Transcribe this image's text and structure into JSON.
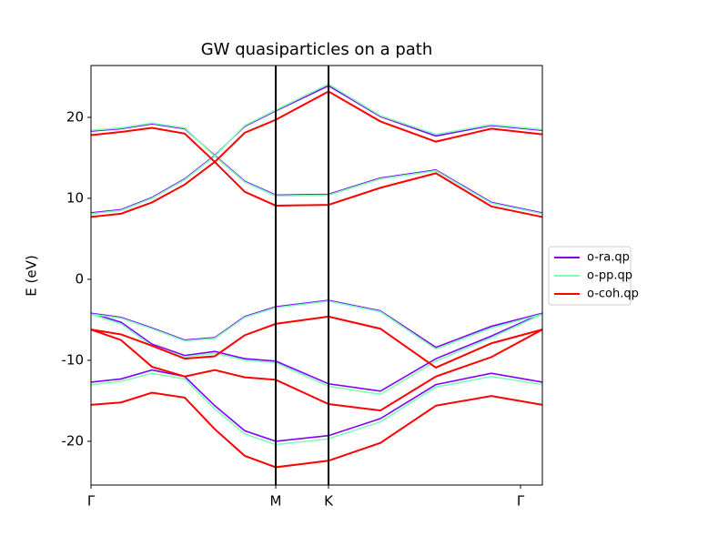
{
  "chart_data": {
    "type": "line",
    "title": "GW quasiparticles on a path",
    "y_label": "E (eV)",
    "x": [
      0,
      0.33,
      0.67,
      1.03,
      1.36,
      1.69,
      2.03,
      2.61,
      3.18,
      3.79,
      4.4,
      4.96
    ],
    "xlim": [
      0,
      4.96
    ],
    "xticks": [
      {
        "value": 0,
        "label": "Γ"
      },
      {
        "value": 2.03,
        "label": "M"
      },
      {
        "value": 2.61,
        "label": "K"
      },
      {
        "value": 4.72,
        "label": "Γ"
      }
    ],
    "vlines": true,
    "ylim": [
      -25.4,
      26.4
    ],
    "yticks": [
      -20,
      -10,
      0,
      10,
      20
    ],
    "legend": "right",
    "series": [
      {
        "name": "o-ra.qp",
        "color": "#7f00ff",
        "values": [
          [
            18.3,
            18.6,
            19.2,
            18.6,
            15.3,
            18.9,
            20.8,
            23.9,
            20.1,
            17.7,
            19.0,
            18.4
          ],
          [
            8.2,
            8.6,
            10.1,
            12.4,
            15.3,
            12.1,
            10.4,
            10.5,
            12.5,
            13.5,
            9.5,
            8.2
          ],
          [
            -4.2,
            -4.7,
            -6.0,
            -7.5,
            -7.2,
            -4.6,
            -3.4,
            -2.6,
            -3.9,
            -8.4,
            -5.8,
            -4.2
          ],
          [
            -4.2,
            -5.3,
            -8.0,
            -9.4,
            -8.9,
            -9.8,
            -10.1,
            -12.9,
            -13.8,
            -9.8,
            -7.0,
            -4.2
          ],
          [
            -12.7,
            -12.3,
            -11.2,
            -12.0,
            -15.6,
            -18.7,
            -20.0,
            -19.3,
            -17.2,
            -13.0,
            -11.6,
            -12.7
          ]
        ]
      },
      {
        "name": "o-pp.qp",
        "color": "#80ffb4",
        "values": [
          [
            18.4,
            18.7,
            19.3,
            18.7,
            15.2,
            19.0,
            20.9,
            24.1,
            20.2,
            17.9,
            19.1,
            18.5
          ],
          [
            8.1,
            8.5,
            10.0,
            12.3,
            15.2,
            12.0,
            10.3,
            10.4,
            12.4,
            13.4,
            9.4,
            8.1
          ],
          [
            -4.3,
            -4.8,
            -6.1,
            -7.6,
            -7.3,
            -4.7,
            -3.5,
            -2.7,
            -4.0,
            -8.6,
            -6.0,
            -4.3
          ],
          [
            -4.3,
            -5.5,
            -8.2,
            -9.6,
            -9.1,
            -10.0,
            -10.3,
            -13.2,
            -14.2,
            -10.1,
            -7.2,
            -4.3
          ],
          [
            -13.0,
            -12.6,
            -11.6,
            -12.3,
            -16.0,
            -19.1,
            -20.4,
            -19.7,
            -17.6,
            -13.3,
            -12.0,
            -13.0
          ]
        ]
      },
      {
        "name": "o-coh.qp",
        "color": "#ff0000",
        "values": [
          [
            17.8,
            18.2,
            18.7,
            18.0,
            14.5,
            18.1,
            19.7,
            23.2,
            19.5,
            17.0,
            18.6,
            17.9
          ],
          [
            7.7,
            8.1,
            9.5,
            11.7,
            14.5,
            10.8,
            9.1,
            9.2,
            11.3,
            13.1,
            9.0,
            7.7
          ],
          [
            -6.2,
            -6.8,
            -8.2,
            -9.8,
            -9.5,
            -6.9,
            -5.5,
            -4.6,
            -6.1,
            -10.9,
            -7.9,
            -6.2
          ],
          [
            -6.2,
            -7.5,
            -10.8,
            -12.0,
            -11.2,
            -12.1,
            -12.4,
            -15.4,
            -16.2,
            -12.0,
            -9.6,
            -6.2
          ],
          [
            -15.5,
            -15.2,
            -14.0,
            -14.6,
            -18.5,
            -21.8,
            -23.2,
            -22.4,
            -20.2,
            -15.6,
            -14.4,
            -15.5
          ]
        ]
      }
    ]
  }
}
